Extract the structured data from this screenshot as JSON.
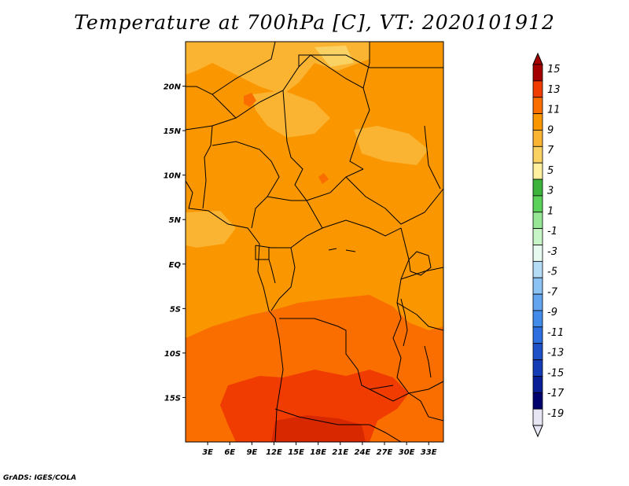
{
  "title": "Temperature at 700hPa [C], VT: 2020101912",
  "credit": "GrADS: IGES/COLA",
  "map": {
    "lon_range": [
      0,
      35
    ],
    "lat_range": [
      -20,
      25
    ],
    "lon_ticks": [
      {
        "value": 3,
        "label": "3E"
      },
      {
        "value": 6,
        "label": "6E"
      },
      {
        "value": 9,
        "label": "9E"
      },
      {
        "value": 12,
        "label": "12E"
      },
      {
        "value": 15,
        "label": "15E"
      },
      {
        "value": 18,
        "label": "18E"
      },
      {
        "value": 21,
        "label": "21E"
      },
      {
        "value": 24,
        "label": "24E"
      },
      {
        "value": 27,
        "label": "27E"
      },
      {
        "value": 30,
        "label": "30E"
      },
      {
        "value": 33,
        "label": "33E"
      }
    ],
    "lat_ticks": [
      {
        "value": 20,
        "label": "20N"
      },
      {
        "value": 15,
        "label": "15N"
      },
      {
        "value": 10,
        "label": "10N"
      },
      {
        "value": 5,
        "label": "5N"
      },
      {
        "value": 0,
        "label": "EQ"
      },
      {
        "value": -5,
        "label": "5S"
      },
      {
        "value": -10,
        "label": "10S"
      },
      {
        "value": -15,
        "label": "15S"
      }
    ]
  },
  "colorbar": {
    "levels": [
      {
        "label": "15",
        "color": "#a50000"
      },
      {
        "label": "13",
        "color": "#f03c00"
      },
      {
        "label": "11",
        "color": "#fa6e00"
      },
      {
        "label": "9",
        "color": "#fa9600"
      },
      {
        "label": "7",
        "color": "#fab432"
      },
      {
        "label": "5",
        "color": "#fad264"
      },
      {
        "label": "3",
        "color": "#fff0a0"
      },
      {
        "label": "1",
        "color": "#3cb43c"
      },
      {
        "label": "-1",
        "color": "#5ad25a"
      },
      {
        "label": "-3",
        "color": "#96e696"
      },
      {
        "label": "-5",
        "color": "#c8f5c8"
      },
      {
        "label": "-7",
        "color": "#e6faf0"
      },
      {
        "label": "-9",
        "color": "#b4dcf5"
      },
      {
        "label": "-11",
        "color": "#8cc3f5"
      },
      {
        "label": "-13",
        "color": "#64a5f0"
      },
      {
        "label": "-15",
        "color": "#418ceb"
      },
      {
        "label": "-17",
        "color": "#2d6ee1"
      },
      {
        "label": "-19",
        "color": "#1e50c8"
      },
      {
        "label": "",
        "color": "#143cb4"
      },
      {
        "label": "",
        "color": "#0a1e96"
      },
      {
        "label": "",
        "color": "#00006e"
      },
      {
        "label": "",
        "color": "#e6e6f5"
      }
    ]
  }
}
